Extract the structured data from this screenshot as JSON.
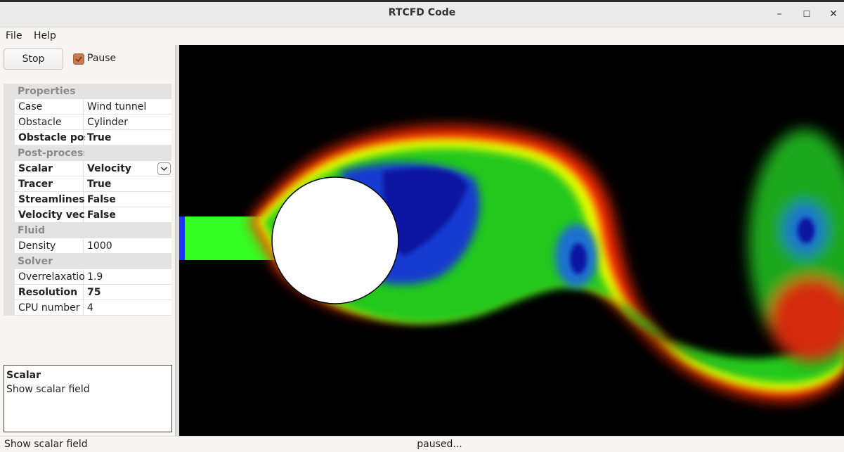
{
  "window": {
    "title": "RTCFD Code"
  },
  "menu": {
    "file": "File",
    "help": "Help"
  },
  "controls": {
    "stop_label": "Stop",
    "pause_label": "Pause",
    "pause_checked": true
  },
  "properties": {
    "categories": {
      "properties": "Properties",
      "post_processing": "Post-processing",
      "fluid": "Fluid",
      "solver": "Solver"
    },
    "rows": {
      "case": {
        "name": "Case",
        "value": "Wind tunnel"
      },
      "obstacle": {
        "name": "Obstacle",
        "value": "Cylinder"
      },
      "obstacle_pos": {
        "name": "Obstacle pos",
        "value": "True"
      },
      "scalar": {
        "name": "Scalar",
        "value": "Velocity"
      },
      "tracer": {
        "name": "Tracer",
        "value": "True"
      },
      "streamlines": {
        "name": "Streamlines",
        "value": "False"
      },
      "velocity_vect": {
        "name": "Velocity vect",
        "value": "False"
      },
      "density": {
        "name": "Density",
        "value": "1000"
      },
      "overrelaxation": {
        "name": "Overrelaxatio",
        "value": "1.9"
      },
      "resolution": {
        "name": "Resolution",
        "value": "75"
      },
      "cpu_number": {
        "name": "CPU number",
        "value": "4"
      }
    }
  },
  "description": {
    "title": "Scalar",
    "text": "Show scalar field"
  },
  "status": {
    "left": "Show scalar field",
    "center": "paused..."
  },
  "colors": {
    "accent": "#c97a50",
    "viewport_bg": "#000000",
    "obstacle": "#ffffff"
  }
}
